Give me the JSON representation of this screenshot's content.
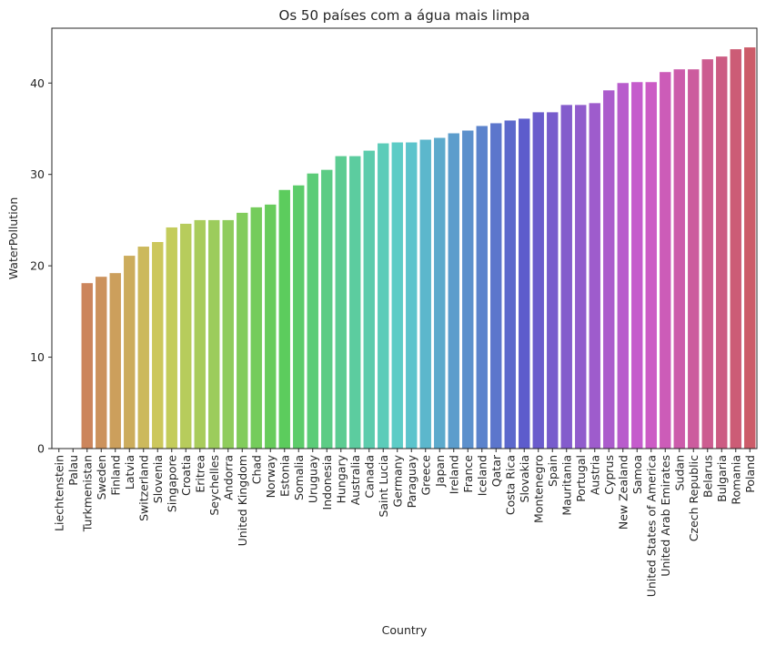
{
  "chart_data": {
    "type": "bar",
    "title": "Os 50 países com a água mais limpa",
    "xlabel": "Country",
    "ylabel": "WaterPollution",
    "ylim": [
      0,
      46
    ],
    "yticks": [
      0,
      10,
      20,
      30,
      40
    ],
    "grid": false,
    "categories": [
      "Liechtenstein",
      "Palau",
      "Turkmenistan",
      "Sweden",
      "Finland",
      "Latvia",
      "Switzerland",
      "Slovenia",
      "Singapore",
      "Croatia",
      "Eritrea",
      "Seychelles",
      "Andorra",
      "United Kingdom",
      "Chad",
      "Norway",
      "Estonia",
      "Somalia",
      "Uruguay",
      "Indonesia",
      "Hungary",
      "Australia",
      "Canada",
      "Saint Lucia",
      "Germany",
      "Paraguay",
      "Greece",
      "Japan",
      "Ireland",
      "France",
      "Iceland",
      "Qatar",
      "Costa Rica",
      "Slovakia",
      "Montenegro",
      "Spain",
      "Mauritania",
      "Portugal",
      "Austria",
      "Cyprus",
      "New Zealand",
      "Samoa",
      "United States of America",
      "United Arab Emirates",
      "Sudan",
      "Czech Republic",
      "Belarus",
      "Bulgaria",
      "Romania",
      "Poland"
    ],
    "values": [
      0,
      0,
      18.1,
      18.8,
      19.2,
      21.1,
      22.1,
      22.6,
      24.2,
      24.6,
      25.0,
      25.0,
      25.0,
      25.8,
      26.4,
      26.7,
      28.3,
      28.8,
      30.1,
      30.5,
      32.0,
      32.0,
      32.6,
      33.4,
      33.5,
      33.5,
      33.8,
      34.0,
      34.5,
      34.8,
      35.3,
      35.6,
      35.9,
      36.1,
      36.8,
      36.8,
      37.6,
      37.6,
      37.8,
      39.2,
      40.0,
      40.1,
      40.1,
      41.2,
      41.5,
      41.5,
      42.6,
      42.9,
      43.7,
      43.9
    ]
  }
}
